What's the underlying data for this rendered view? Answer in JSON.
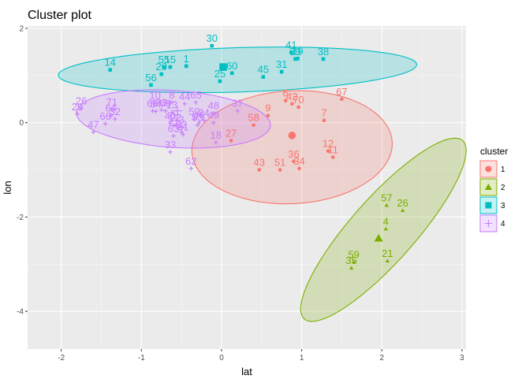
{
  "chart_data": {
    "type": "scatter",
    "title": "Cluster plot",
    "xlabel": "lat",
    "ylabel": "lon",
    "xlim": [
      -2.42,
      3.05
    ],
    "ylim": [
      -4.8,
      2.05
    ],
    "x_ticks": [
      -2,
      -1,
      0,
      1,
      2,
      3
    ],
    "y_ticks": [
      -4,
      -2,
      0,
      2
    ],
    "x_tick_labels": [
      "-2",
      "-1",
      "0",
      "1",
      "2",
      "3"
    ],
    "y_tick_labels": [
      "-4",
      "-2",
      "0",
      "2"
    ],
    "grid": true,
    "legend_title": "cluster",
    "legend_position": "right",
    "colors": {
      "panel_bg": "#ebebeb",
      "grid_major": "#ffffff",
      "grid_minor": "#f5f5f5"
    },
    "clusters": [
      {
        "name": "1",
        "color": "#F8766D",
        "shape": "circle",
        "center": [
          0.88,
          -0.27
        ],
        "ellipse": {
          "cx": 0.88,
          "cy": -0.52,
          "rx": 1.27,
          "ry": 1.18,
          "angle": 28
        },
        "points": [
          {
            "label": "67",
            "x": 1.5,
            "y": 0.5
          },
          {
            "label": "9",
            "x": 0.58,
            "y": 0.15
          },
          {
            "label": "6",
            "x": 0.8,
            "y": 0.47
          },
          {
            "label": "42",
            "x": 0.88,
            "y": 0.4
          },
          {
            "label": "70",
            "x": 0.96,
            "y": 0.33
          },
          {
            "label": "7",
            "x": 1.28,
            "y": 0.05
          },
          {
            "label": "58",
            "x": 0.4,
            "y": -0.05
          },
          {
            "label": "27",
            "x": 0.12,
            "y": -0.38
          },
          {
            "label": "12",
            "x": 1.33,
            "y": -0.6
          },
          {
            "label": "11",
            "x": 1.39,
            "y": -0.73
          },
          {
            "label": "36",
            "x": 0.9,
            "y": -0.82
          },
          {
            "label": "34",
            "x": 0.97,
            "y": -0.97
          },
          {
            "label": "43",
            "x": 0.47,
            "y": -1.0
          },
          {
            "label": "51",
            "x": 0.73,
            "y": -1.0
          }
        ]
      },
      {
        "name": "2",
        "color": "#7CAE00",
        "shape": "triangle",
        "center": [
          1.96,
          -2.45
        ],
        "ellipse": {
          "cx": 2.02,
          "cy": -2.27,
          "rx": 2.15,
          "ry": 0.47,
          "angle": 64
        },
        "points": [
          {
            "label": "57",
            "x": 2.06,
            "y": -1.75
          },
          {
            "label": "26",
            "x": 2.26,
            "y": -1.86
          },
          {
            "label": "4",
            "x": 2.05,
            "y": -2.25
          },
          {
            "label": "21",
            "x": 2.07,
            "y": -2.93
          },
          {
            "label": "59",
            "x": 1.65,
            "y": -2.95
          },
          {
            "label": "35",
            "x": 1.62,
            "y": -3.08
          }
        ]
      },
      {
        "name": "3",
        "color": "#00BFC4",
        "shape": "square",
        "center": [
          0.02,
          1.18
        ],
        "ellipse": {
          "cx": 0.2,
          "cy": 1.12,
          "rx": 2.24,
          "ry": 0.47,
          "angle": 3
        },
        "points": [
          {
            "label": "30",
            "x": -0.12,
            "y": 1.63
          },
          {
            "label": "41",
            "x": 0.87,
            "y": 1.49
          },
          {
            "label": "39",
            "x": 0.92,
            "y": 1.35
          },
          {
            "label": "19",
            "x": 0.95,
            "y": 1.36
          },
          {
            "label": "38",
            "x": 1.27,
            "y": 1.35
          },
          {
            "label": "14",
            "x": -1.39,
            "y": 1.12
          },
          {
            "label": "55",
            "x": -0.72,
            "y": 1.18
          },
          {
            "label": "15",
            "x": -0.64,
            "y": 1.18
          },
          {
            "label": "1",
            "x": -0.44,
            "y": 1.2
          },
          {
            "label": "20",
            "x": -0.75,
            "y": 1.03
          },
          {
            "label": "56",
            "x": -0.88,
            "y": 0.8
          },
          {
            "label": "60",
            "x": 0.13,
            "y": 1.05
          },
          {
            "label": "25",
            "x": -0.02,
            "y": 0.88
          },
          {
            "label": "45",
            "x": 0.52,
            "y": 0.97
          },
          {
            "label": "31",
            "x": 0.75,
            "y": 1.08
          }
        ]
      },
      {
        "name": "4",
        "color": "#C77CFF",
        "shape": "cross",
        "center": [
          -0.55,
          0.25
        ],
        "ellipse": {
          "cx": -0.6,
          "cy": 0.08,
          "rx": 1.22,
          "ry": 0.6,
          "angle": -8
        },
        "points": [
          {
            "label": "26",
            "x": -1.75,
            "y": 0.3
          },
          {
            "label": "29",
            "x": -1.8,
            "y": 0.18
          },
          {
            "label": "71",
            "x": -1.37,
            "y": 0.28
          },
          {
            "label": "64",
            "x": -1.38,
            "y": 0.15
          },
          {
            "label": "32",
            "x": -1.33,
            "y": 0.08
          },
          {
            "label": "66",
            "x": -1.45,
            "y": -0.02
          },
          {
            "label": "47",
            "x": -1.6,
            "y": -0.2
          },
          {
            "label": "10",
            "x": -0.83,
            "y": 0.42
          },
          {
            "label": "8",
            "x": -0.62,
            "y": 0.43
          },
          {
            "label": "44",
            "x": -0.46,
            "y": 0.4
          },
          {
            "label": "65",
            "x": -0.32,
            "y": 0.43
          },
          {
            "label": "68",
            "x": -0.86,
            "y": 0.25
          },
          {
            "label": "54",
            "x": -0.82,
            "y": 0.24
          },
          {
            "label": "23",
            "x": -0.75,
            "y": 0.27
          },
          {
            "label": "69",
            "x": -0.7,
            "y": 0.25
          },
          {
            "label": "13",
            "x": -0.62,
            "y": 0.22
          },
          {
            "label": "48",
            "x": -0.1,
            "y": 0.2
          },
          {
            "label": "37",
            "x": 0.2,
            "y": 0.25
          },
          {
            "label": "50",
            "x": -0.34,
            "y": 0.08
          },
          {
            "label": "24",
            "x": -0.22,
            "y": 0.05
          },
          {
            "label": "46",
            "x": -0.28,
            "y": 0.0
          },
          {
            "label": "53",
            "x": -0.3,
            "y": -0.05
          },
          {
            "label": "49",
            "x": -0.1,
            "y": 0.0
          },
          {
            "label": "40",
            "x": -0.64,
            "y": -0.01
          },
          {
            "label": "17",
            "x": -0.6,
            "y": -0.06
          },
          {
            "label": "22",
            "x": -0.57,
            "y": -0.05
          },
          {
            "label": "3",
            "x": -0.5,
            "y": -0.1
          },
          {
            "label": "52",
            "x": -0.5,
            "y": -0.2
          },
          {
            "label": "61",
            "x": -0.48,
            "y": -0.25
          },
          {
            "label": "63",
            "x": -0.6,
            "y": -0.28
          },
          {
            "label": "18",
            "x": -0.07,
            "y": -0.42
          },
          {
            "label": "33",
            "x": -0.64,
            "y": -0.62
          },
          {
            "label": "62",
            "x": -0.38,
            "y": -0.97
          }
        ]
      }
    ]
  }
}
